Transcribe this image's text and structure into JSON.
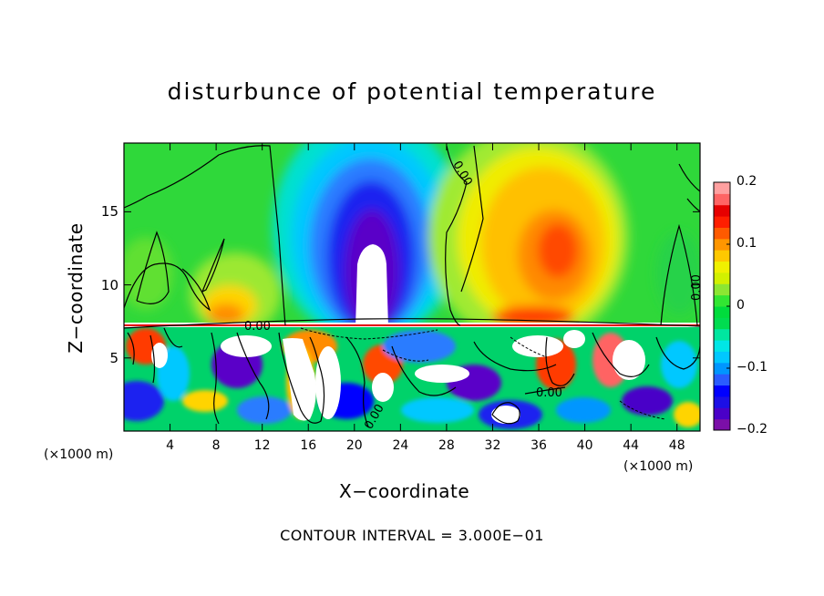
{
  "chart_data": {
    "type": "heatmap",
    "title": "disturbunce of potential temperature",
    "xlabel": "X−coordinate",
    "ylabel": "Z−coordinate",
    "x_unit_left": "(×1000 m)",
    "x_unit_right": "(×1000 m)",
    "footer": "CONTOUR INTERVAL = 3.000E−01",
    "xlim": [
      0,
      50
    ],
    "ylim": [
      0,
      19.7
    ],
    "x_ticks": [
      4,
      8,
      12,
      16,
      20,
      24,
      28,
      32,
      36,
      40,
      44,
      48
    ],
    "x_tick_labels": [
      "4",
      "8",
      "12",
      "16",
      "20",
      "24",
      "28",
      "32",
      "36",
      "40",
      "44",
      "48"
    ],
    "y_ticks": [
      5,
      10,
      15
    ],
    "y_tick_labels": [
      "5",
      "10",
      "15"
    ],
    "colorbar": {
      "range": [
        -0.2,
        0.2
      ],
      "tick_labels": [
        "0.2",
        "0.1",
        "0",
        "−0.1",
        "−0.2"
      ],
      "tick_values": [
        0.2,
        0.1,
        0,
        -0.1,
        -0.2
      ],
      "colors": [
        "#7b0fa8",
        "#4a00c8",
        "#1c0fe6",
        "#0000ff",
        "#2a5cff",
        "#0096ff",
        "#00c8ff",
        "#00e6e6",
        "#00e6a0",
        "#00dc50",
        "#00dc3c",
        "#32e632",
        "#8ce632",
        "#d2f000",
        "#f0f000",
        "#ffc800",
        "#ff9600",
        "#ff5a00",
        "#ff1e00",
        "#e60000",
        "#ff6464",
        "#ffa0a0"
      ]
    },
    "contour_labels": [
      "0.00",
      "0.00",
      "0.00",
      "0.00",
      "0.00"
    ],
    "features": [
      {
        "name": "cold anomaly column",
        "x_center": 21,
        "z_top": 17.5,
        "min_value": -0.2
      },
      {
        "name": "warm anomaly",
        "x_center": 38,
        "z_center": 13,
        "max_value": 0.15
      }
    ]
  }
}
